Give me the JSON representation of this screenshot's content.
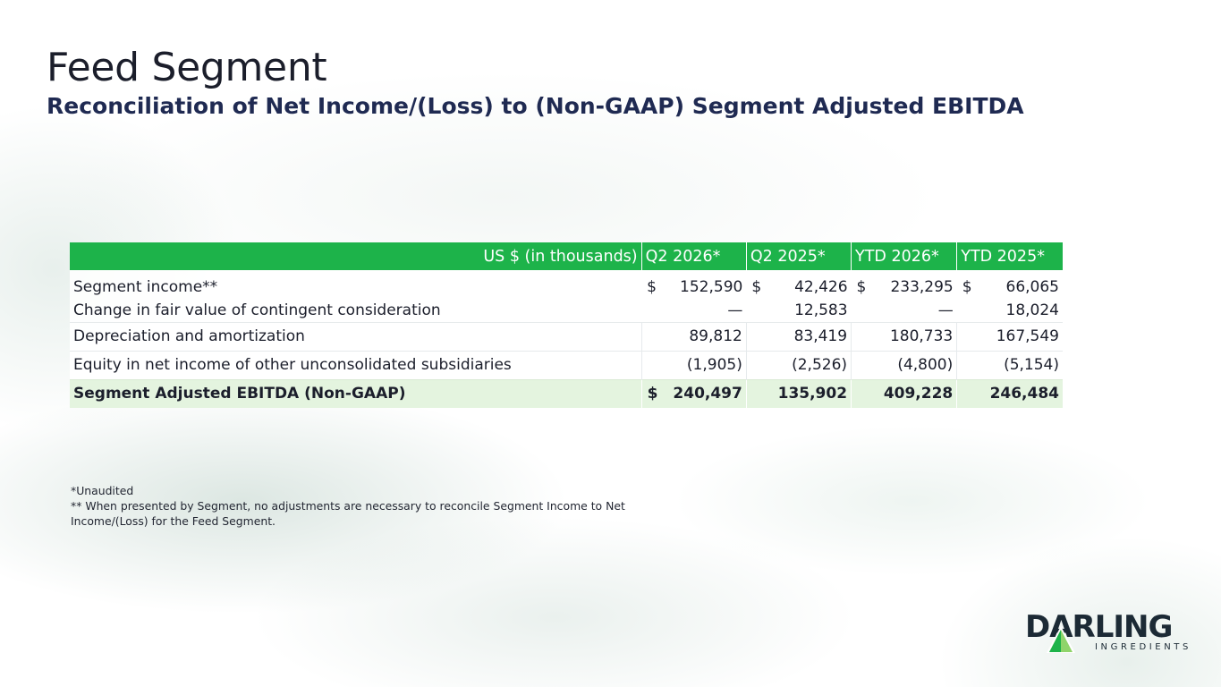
{
  "title": "Feed Segment",
  "subtitle": "Reconciliation of Net Income/(Loss) to (Non-GAAP) Segment Adjusted EBITDA",
  "table": {
    "header": {
      "label": "US $ (in thousands)",
      "cols": [
        "Q2 2026*",
        "Q2 2025*",
        "YTD 2026*",
        "YTD 2025*"
      ]
    },
    "rows": [
      {
        "label": "Segment income**",
        "values": [
          "152,590",
          "42,426",
          "233,295",
          "66,065"
        ],
        "dollars": [
          "$",
          "$",
          "$",
          "$"
        ]
      },
      {
        "label": "Change in fair value of contingent consideration",
        "values": [
          "—",
          "12,583",
          "—",
          "18,024"
        ]
      },
      {
        "label": "Depreciation and amortization",
        "values": [
          "89,812",
          "83,419",
          "180,733",
          "167,549"
        ]
      },
      {
        "label": "Equity in net income of other unconsolidated subsidiaries",
        "values": [
          "(1,905)",
          "(2,526)",
          "(4,800)",
          "(5,154)"
        ]
      },
      {
        "label": "Segment Adjusted EBITDA (Non-GAAP)",
        "values": [
          "240,497",
          "135,902",
          "409,228",
          "246,484"
        ],
        "dollars": [
          "$",
          "",
          "",
          ""
        ]
      }
    ]
  },
  "footnotes": {
    "unaudited": "*Unaudited",
    "segment_note": "** When presented by Segment, no adjustments are necessary to reconcile Segment Income to Net Income/(Loss) for the Feed Segment."
  },
  "logo": {
    "word": "DARLING",
    "sub": "INGREDIENTS",
    "icon": "darling-leaf-logo-icon",
    "colors": {
      "dark": "#1c2a35",
      "green": "#1db34a",
      "light_green": "#8fd46a"
    }
  },
  "colors": {
    "header_bg": "#1db34a",
    "total_bg": "#e4f4df",
    "title": "#1b1e2b",
    "subtitle": "#1f2a52"
  }
}
